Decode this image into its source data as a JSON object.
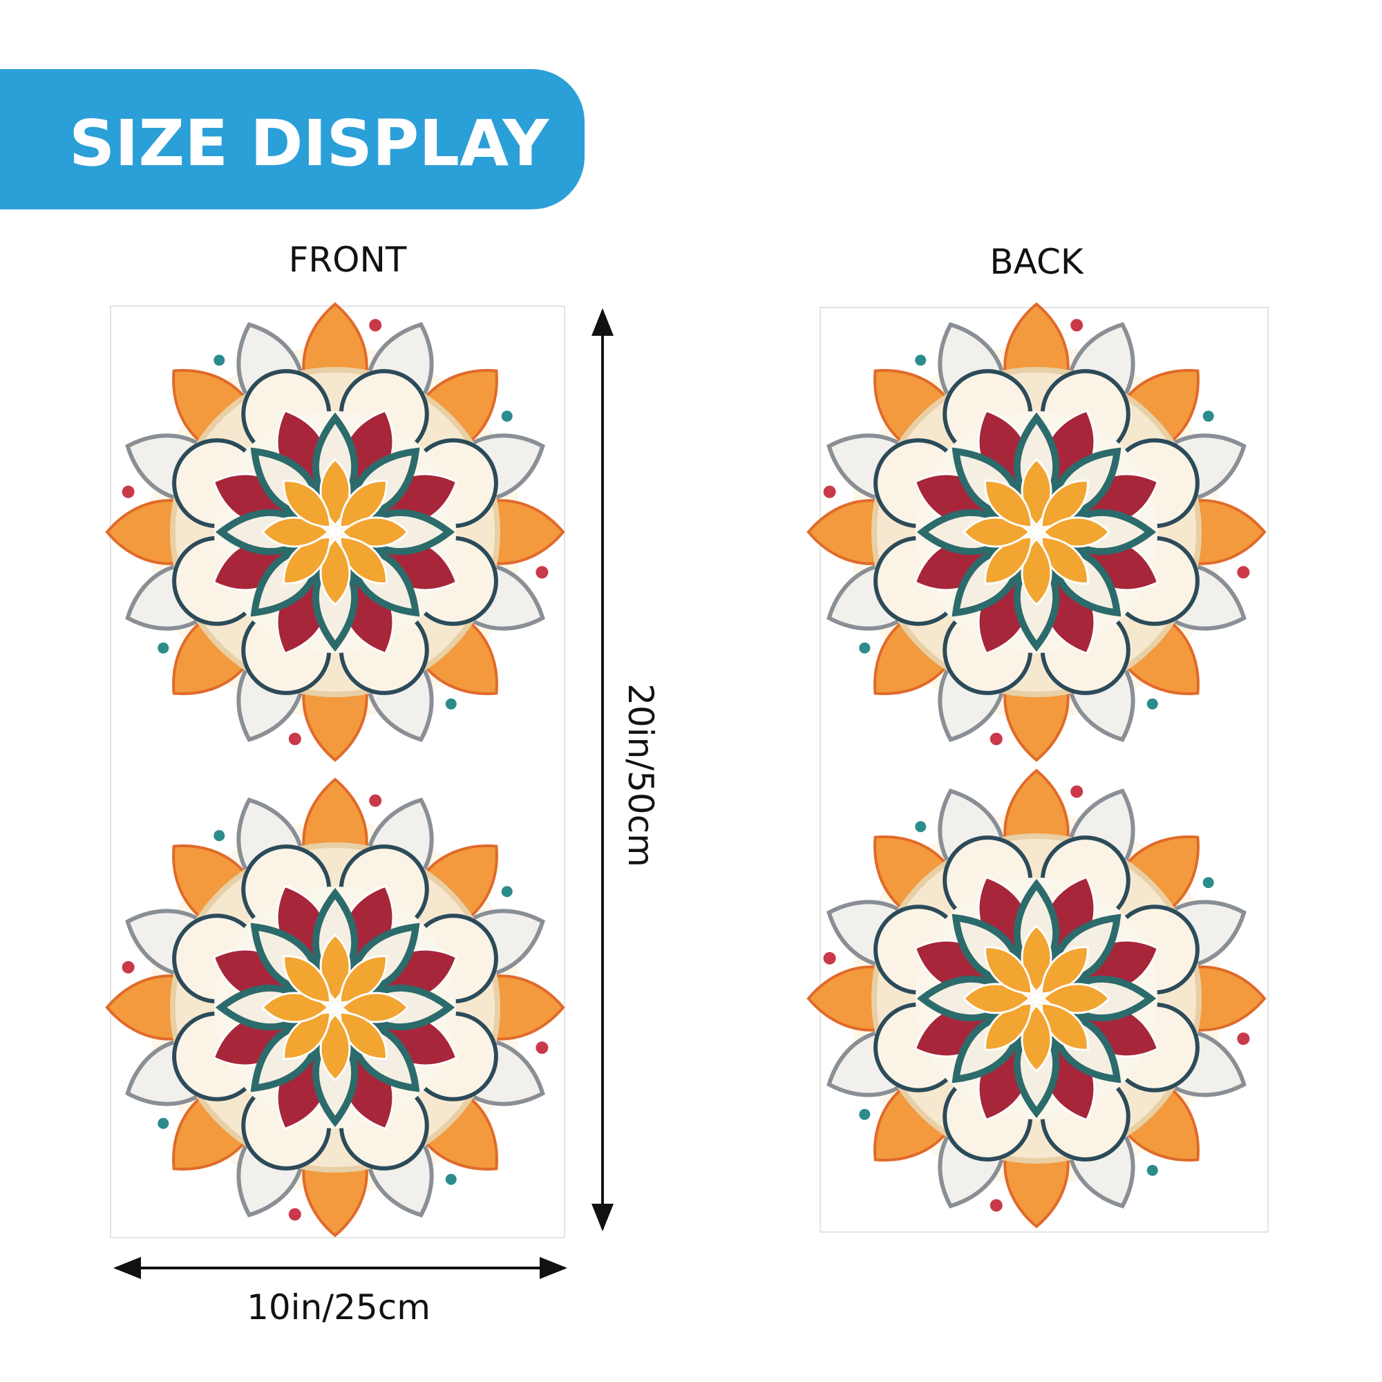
{
  "header": {
    "title": "SIZE DISPLAY"
  },
  "views": {
    "front": "FRONT",
    "back": "BACK"
  },
  "dimensions": {
    "height": "20in/50cm",
    "width": "10in/25cm"
  }
}
